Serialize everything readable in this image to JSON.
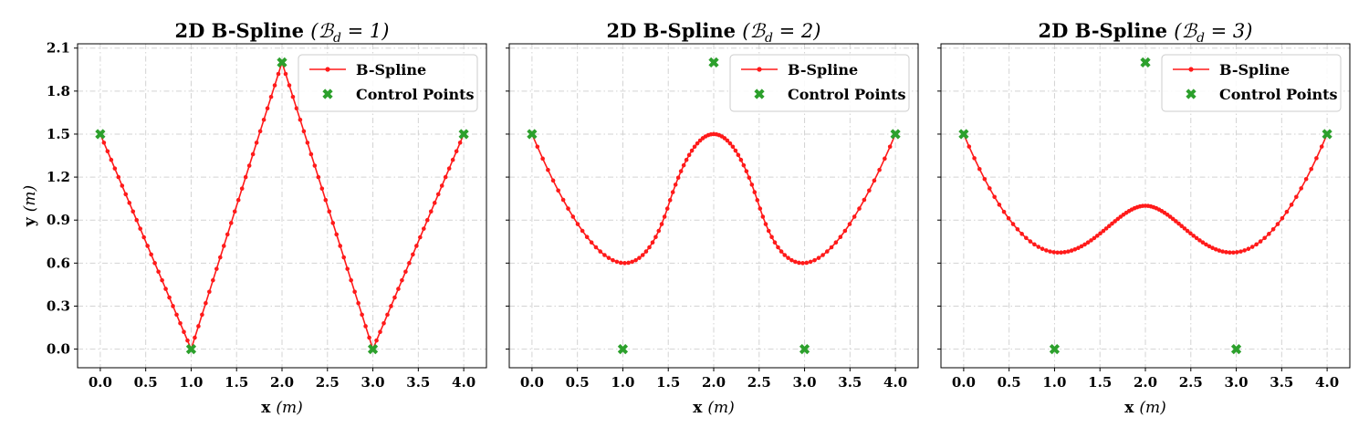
{
  "colors": {
    "spline": "#ff1a1a",
    "control": "#2ca02c",
    "grid": "#d3d3d3"
  },
  "chart_data": [
    {
      "type": "line",
      "title": "2D B-Spline",
      "title_math": "(ℬ",
      "title_sub": "d",
      "title_eq": " = 1)",
      "xlabel": "x",
      "xlabel_unit": "(m)",
      "ylabel": "y",
      "ylabel_unit": "(m)",
      "xlim": [
        -0.25,
        4.25
      ],
      "ylim": [
        -0.13,
        2.13
      ],
      "xticks": [
        "0.0",
        "0.5",
        "1.0",
        "1.5",
        "2.0",
        "2.5",
        "3.0",
        "3.5",
        "4.0"
      ],
      "yticks": [
        "0.0",
        "0.3",
        "0.6",
        "0.9",
        "1.2",
        "1.5",
        "1.8",
        "2.1"
      ],
      "grid": true,
      "legend_position": "top-right",
      "degree": 1,
      "series": [
        {
          "name": "B-Spline",
          "style": "line-with-dot-markers",
          "samples": 101
        },
        {
          "name": "Control Points",
          "style": "x-markers",
          "x": [
            0,
            1,
            2,
            3,
            4
          ],
          "y": [
            1.5,
            0,
            2,
            0,
            1.5
          ]
        }
      ]
    },
    {
      "type": "line",
      "title": "2D B-Spline",
      "title_math": "(ℬ",
      "title_sub": "d",
      "title_eq": " = 2)",
      "xlabel": "x",
      "xlabel_unit": "(m)",
      "xlim": [
        -0.25,
        4.25
      ],
      "ylim": [
        -0.13,
        2.13
      ],
      "xticks": [
        "0.0",
        "0.5",
        "1.0",
        "1.5",
        "2.0",
        "2.5",
        "3.0",
        "3.5",
        "4.0"
      ],
      "grid": true,
      "legend_position": "top-right",
      "degree": 2,
      "series": [
        {
          "name": "B-Spline",
          "style": "line-with-dot-markers",
          "samples": 101
        },
        {
          "name": "Control Points",
          "style": "x-markers",
          "x": [
            0,
            1,
            2,
            3,
            4
          ],
          "y": [
            1.5,
            0,
            2,
            0,
            1.5
          ]
        }
      ]
    },
    {
      "type": "line",
      "title": "2D B-Spline",
      "title_math": "(ℬ",
      "title_sub": "d",
      "title_eq": " = 3)",
      "xlabel": "x",
      "xlabel_unit": "(m)",
      "xlim": [
        -0.25,
        4.25
      ],
      "ylim": [
        -0.13,
        2.13
      ],
      "xticks": [
        "0.0",
        "0.5",
        "1.0",
        "1.5",
        "2.0",
        "2.5",
        "3.0",
        "3.5",
        "4.0"
      ],
      "grid": true,
      "legend_position": "top-right",
      "degree": 3,
      "series": [
        {
          "name": "B-Spline",
          "style": "line-with-dot-markers",
          "samples": 101
        },
        {
          "name": "Control Points",
          "style": "x-markers",
          "x": [
            0,
            1,
            2,
            3,
            4
          ],
          "y": [
            1.5,
            0,
            2,
            0,
            1.5
          ]
        }
      ]
    }
  ]
}
